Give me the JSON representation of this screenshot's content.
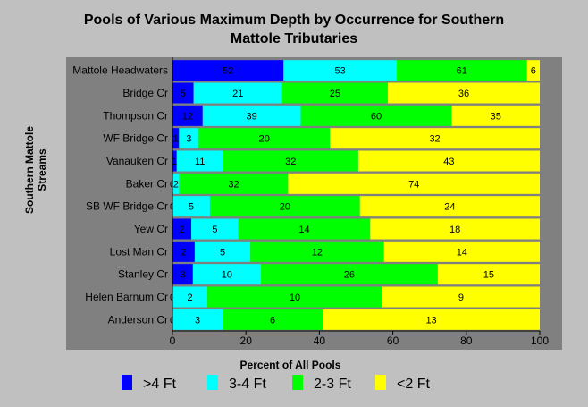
{
  "chart_data": {
    "type": "bar",
    "orientation": "horizontal",
    "stacking": "percent",
    "title_lines": [
      "Pools of Various Maximum Depth by Occurrence for Southern",
      "Mattole Tributaries"
    ],
    "xlabel": "Percent of All Pools",
    "ylabel_lines": [
      "Southern Mattole",
      "Streams"
    ],
    "xlim": [
      0,
      100
    ],
    "xticks": [
      "0",
      "20",
      "40",
      "60",
      "80",
      "100"
    ],
    "grid": false,
    "legend_position": "bottom",
    "categories": [
      "Mattole Headwaters",
      "Bridge Cr",
      "Thompson Cr",
      "WF Bridge Cr",
      "Vanauken Cr",
      "Baker Cr",
      "SB WF Bridge Cr",
      "Yew Cr",
      "Lost Man Cr",
      "Stanley Cr",
      "Helen Barnum Cr",
      "Anderson Cr"
    ],
    "series": [
      {
        "name": ">4 Ft",
        "color": "#0000ff",
        "values": [
          52,
          5,
          12,
          1,
          1,
          0,
          0,
          2,
          2,
          3,
          0,
          0
        ]
      },
      {
        "name": "3-4 Ft",
        "color": "#00ffff",
        "values": [
          53,
          21,
          39,
          3,
          11,
          2,
          5,
          5,
          5,
          10,
          2,
          3
        ]
      },
      {
        "name": "2-3 Ft",
        "color": "#00ff00",
        "values": [
          61,
          25,
          60,
          20,
          32,
          32,
          20,
          14,
          12,
          26,
          10,
          6
        ]
      },
      {
        "name": "<2 Ft",
        "color": "#ffff00",
        "values": [
          6,
          36,
          35,
          32,
          43,
          74,
          24,
          18,
          14,
          15,
          9,
          13
        ]
      }
    ]
  }
}
